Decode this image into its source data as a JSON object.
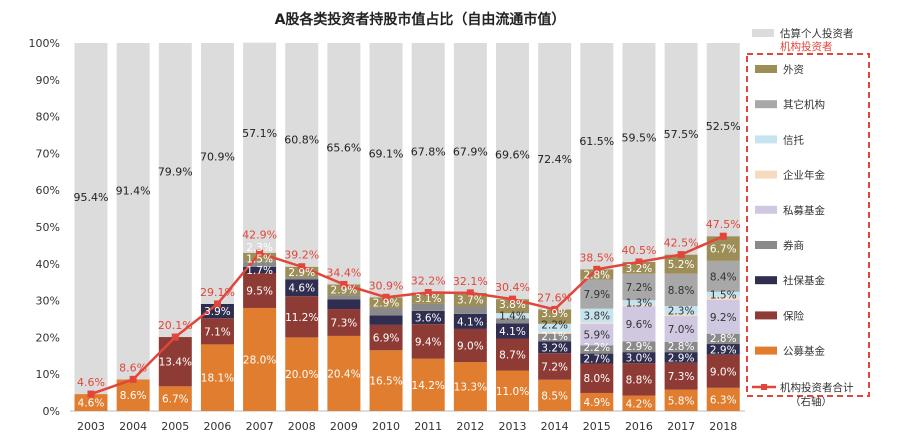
{
  "chart_data": {
    "type": "bar",
    "stacked": true,
    "title": "A股各类投资者持股市值占比（自由流通市值）",
    "categories": [
      "2003",
      "2004",
      "2005",
      "2006",
      "2007",
      "2008",
      "2009",
      "2010",
      "2011",
      "2012",
      "2013",
      "2014",
      "2015",
      "2016",
      "2017",
      "2018"
    ],
    "ylim": [
      0,
      100
    ],
    "yticks": [
      "0%",
      "10%",
      "20%",
      "30%",
      "40%",
      "50%",
      "60%",
      "70%",
      "80%",
      "90%",
      "100%"
    ],
    "grid": false,
    "legend_position": "right",
    "legend_group_label": "机构投资者",
    "series": [
      {
        "name": "公募基金",
        "color": "#e07d2e",
        "text": "#fff",
        "values": [
          4.6,
          8.6,
          6.7,
          18.1,
          28.0,
          20.0,
          20.4,
          16.5,
          14.2,
          13.3,
          11.0,
          8.5,
          4.9,
          4.2,
          5.8,
          6.3
        ],
        "labels": [
          "4.6%",
          "8.6%",
          "6.7%",
          "18.1%",
          "28.0%",
          "20.0%",
          "20.4%",
          "16.5%",
          "14.2%",
          "13.3%",
          "11.0%",
          "8.5%",
          "4.9%",
          "4.2%",
          "5.8%",
          "6.3%"
        ]
      },
      {
        "name": "保险",
        "color": "#8e3b35",
        "text": "#fff",
        "values": [
          0,
          0,
          13.4,
          7.1,
          9.5,
          11.2,
          7.3,
          6.9,
          9.4,
          9.0,
          8.7,
          7.2,
          8.0,
          8.8,
          7.3,
          9.0
        ],
        "labels": [
          "",
          "",
          "13.4%",
          "7.1%",
          "9.5%",
          "11.2%",
          "7.3%",
          "6.9%",
          "9.4%",
          "9.0%",
          "8.7%",
          "7.2%",
          "8.0%",
          "8.8%",
          "7.3%",
          "9.0%"
        ]
      },
      {
        "name": "社保基金",
        "color": "#2f2e50",
        "text": "#fff",
        "values": [
          0,
          0,
          0,
          3.9,
          1.7,
          4.6,
          2.6,
          2.6,
          3.6,
          4.1,
          4.1,
          3.2,
          2.7,
          3.0,
          2.9,
          2.9
        ],
        "labels": [
          "",
          "",
          "",
          "3.9%",
          "1.7%",
          "4.6%",
          "",
          "",
          "3.6%",
          "4.1%",
          "4.1%",
          "3.2%",
          "2.7%",
          "3.0%",
          "2.9%",
          "2.9%"
        ]
      },
      {
        "name": "券商",
        "color": "#8a8a8a",
        "text": "#fff",
        "values": [
          0,
          0,
          0,
          0,
          1.5,
          0.5,
          1.2,
          2.0,
          1.9,
          2.0,
          1.4,
          2.1,
          2.2,
          2.9,
          2.8,
          2.8
        ],
        "labels": [
          "",
          "",
          "",
          "",
          "1.5%",
          "",
          "",
          "",
          "",
          "",
          "",
          "2.1%",
          "2.2%",
          "2.9%",
          "2.8%",
          "2.8%"
        ]
      },
      {
        "name": "私募基金",
        "color": "#cfc8e0",
        "text": "#333",
        "values": [
          0,
          0,
          0,
          0,
          0,
          0,
          0,
          0,
          0,
          0,
          0,
          0,
          5.9,
          9.6,
          7.0,
          9.2
        ],
        "labels": [
          "",
          "",
          "",
          "",
          "",
          "",
          "",
          "",
          "",
          "",
          "",
          "",
          "5.9%",
          "9.6%",
          "7.0%",
          "9.2%"
        ]
      },
      {
        "name": "企业年金",
        "color": "#f6dcbf",
        "text": "#333",
        "values": [
          0,
          0,
          0,
          0,
          0,
          0,
          0,
          0,
          0,
          0,
          0,
          0.5,
          0.3,
          0.3,
          0.4,
          0.7
        ],
        "labels": [
          "",
          "",
          "",
          "",
          "",
          "",
          "",
          "",
          "",
          "",
          "",
          "",
          "",
          "",
          "",
          ""
        ]
      },
      {
        "name": "信托",
        "color": "#c6e4ef",
        "text": "#333",
        "values": [
          0,
          0,
          0,
          0,
          0,
          0,
          0,
          0,
          0,
          0,
          1.4,
          2.2,
          3.8,
          1.3,
          2.3,
          1.5
        ],
        "labels": [
          "",
          "",
          "",
          "",
          "",
          "",
          "",
          "",
          "",
          "",
          "1.4%",
          "2.2%",
          "3.8%",
          "1.3%",
          "2.3%",
          "1.5%"
        ]
      },
      {
        "name": "其它机构",
        "color": "#a8a8a8",
        "text": "#333",
        "values": [
          0,
          0,
          0,
          0,
          0,
          0,
          0,
          0,
          0,
          0,
          0,
          0,
          7.9,
          7.2,
          8.8,
          8.4
        ],
        "labels": [
          "",
          "",
          "",
          "",
          "",
          "",
          "",
          "",
          "",
          "",
          "",
          "",
          "7.9%",
          "7.2%",
          "8.8%",
          "8.4%"
        ]
      },
      {
        "name": "外资",
        "color": "#9d8d57",
        "text": "#fff",
        "values": [
          0,
          0,
          0,
          0,
          2.3,
          2.9,
          2.9,
          2.9,
          3.1,
          3.7,
          3.8,
          3.9,
          2.8,
          3.2,
          5.2,
          6.7
        ],
        "labels": [
          "",
          "",
          "",
          "",
          "2.3%",
          "2.9%",
          "2.9%",
          "2.9%",
          "3.1%",
          "3.7%",
          "3.8%",
          "3.9%",
          "2.8%",
          "3.2%",
          "5.2%",
          "6.7%"
        ]
      },
      {
        "name": "估算个人投资者",
        "color": "#dcdcdc",
        "text": "#222",
        "values": [
          95.4,
          91.4,
          79.9,
          70.9,
          57.1,
          60.8,
          65.6,
          69.1,
          67.8,
          67.9,
          69.6,
          72.4,
          61.5,
          59.5,
          57.5,
          52.5
        ],
        "labels": [
          "95.4%",
          "91.4%",
          "79.9%",
          "70.9%",
          "57.1%",
          "60.8%",
          "65.6%",
          "69.1%",
          "67.8%",
          "67.9%",
          "69.6%",
          "72.4%",
          "61.5%",
          "59.5%",
          "57.5%",
          "52.5%"
        ]
      }
    ],
    "line": {
      "name": "机构投资者合计",
      "axis_note": "（右轴）",
      "color": "#e2463b",
      "values": [
        4.6,
        8.6,
        20.1,
        29.1,
        42.9,
        39.2,
        34.4,
        30.9,
        32.2,
        32.1,
        30.4,
        27.6,
        38.5,
        40.5,
        42.5,
        47.5
      ],
      "labels": [
        "4.6%",
        "8.6%",
        "20.1%",
        "29.1%",
        "42.9%",
        "39.2%",
        "34.4%",
        "30.9%",
        "32.2%",
        "32.1%",
        "30.4%",
        "27.6%",
        "38.5%",
        "40.5%",
        "42.5%",
        "47.5%"
      ]
    }
  }
}
